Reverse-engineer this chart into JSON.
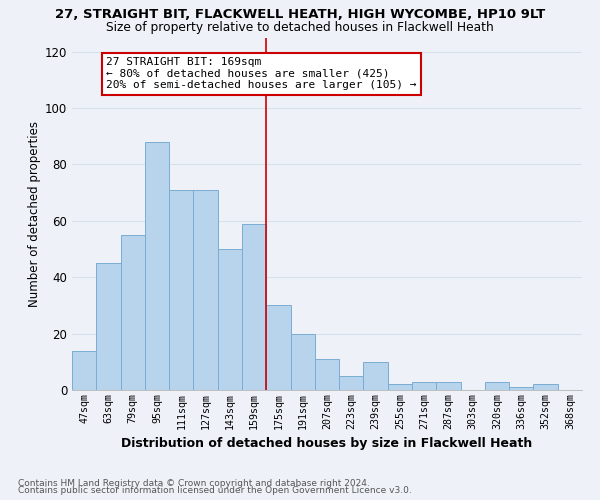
{
  "title1": "27, STRAIGHT BIT, FLACKWELL HEATH, HIGH WYCOMBE, HP10 9LT",
  "title2": "Size of property relative to detached houses in Flackwell Heath",
  "xlabel": "Distribution of detached houses by size in Flackwell Heath",
  "ylabel": "Number of detached properties",
  "bar_labels": [
    "47sqm",
    "63sqm",
    "79sqm",
    "95sqm",
    "111sqm",
    "127sqm",
    "143sqm",
    "159sqm",
    "175sqm",
    "191sqm",
    "207sqm",
    "223sqm",
    "239sqm",
    "255sqm",
    "271sqm",
    "287sqm",
    "303sqm",
    "320sqm",
    "336sqm",
    "352sqm",
    "368sqm"
  ],
  "bar_values": [
    14,
    45,
    55,
    88,
    71,
    71,
    50,
    59,
    30,
    20,
    11,
    5,
    10,
    2,
    3,
    3,
    0,
    3,
    1,
    2,
    0
  ],
  "bar_color": "#b8d4ed",
  "bar_edge_color": "#7aadd4",
  "vline_color": "#cc0000",
  "annotation_text": "27 STRAIGHT BIT: 169sqm\n← 80% of detached houses are smaller (425)\n20% of semi-detached houses are larger (105) →",
  "annotation_box_color": "white",
  "annotation_box_edge": "#cc0000",
  "ylim": [
    0,
    125
  ],
  "yticks": [
    0,
    20,
    40,
    60,
    80,
    100,
    120
  ],
  "footer1": "Contains HM Land Registry data © Crown copyright and database right 2024.",
  "footer2": "Contains public sector information licensed under the Open Government Licence v3.0.",
  "bg_color": "#eef2f8",
  "grid_color": "#d8e0ec",
  "vline_bar_index": 8
}
